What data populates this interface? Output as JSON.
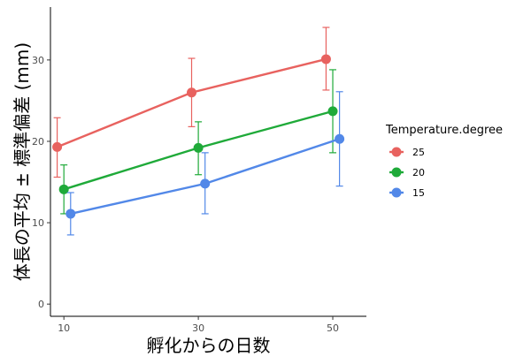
{
  "chart_data": {
    "type": "line",
    "xlabel": "孵化からの日数",
    "ylabel": "体長の平均 ± 標準偏差 (mm)",
    "x_ticks": [
      "10",
      "30",
      "50"
    ],
    "y_ticks": [
      "0",
      "10",
      "20",
      "30"
    ],
    "xlim": [
      8,
      55
    ],
    "ylim": [
      -1.5,
      36.5
    ],
    "grid": false,
    "error_bars": true,
    "legend": {
      "title": "Temperature.degree",
      "position": "right"
    },
    "series": [
      {
        "name": "25",
        "color": "#e8625f",
        "x_offset": -1.0,
        "points": [
          {
            "x": 10,
            "y": 19.3,
            "lo": 15.6,
            "hi": 22.9
          },
          {
            "x": 30,
            "y": 26.0,
            "lo": 21.8,
            "hi": 30.2
          },
          {
            "x": 50,
            "y": 30.1,
            "lo": 26.3,
            "hi": 34.0
          }
        ]
      },
      {
        "name": "20",
        "color": "#1faa39",
        "x_offset": 0.0,
        "points": [
          {
            "x": 10,
            "y": 14.1,
            "lo": 11.1,
            "hi": 17.1
          },
          {
            "x": 30,
            "y": 19.2,
            "lo": 15.9,
            "hi": 22.4
          },
          {
            "x": 50,
            "y": 23.7,
            "lo": 18.6,
            "hi": 28.8
          }
        ]
      },
      {
        "name": "15",
        "color": "#5288e8",
        "x_offset": 1.0,
        "points": [
          {
            "x": 10,
            "y": 11.1,
            "lo": 8.5,
            "hi": 13.7
          },
          {
            "x": 30,
            "y": 14.8,
            "lo": 11.1,
            "hi": 18.6
          },
          {
            "x": 50,
            "y": 20.3,
            "lo": 14.5,
            "hi": 26.1
          }
        ]
      }
    ]
  }
}
